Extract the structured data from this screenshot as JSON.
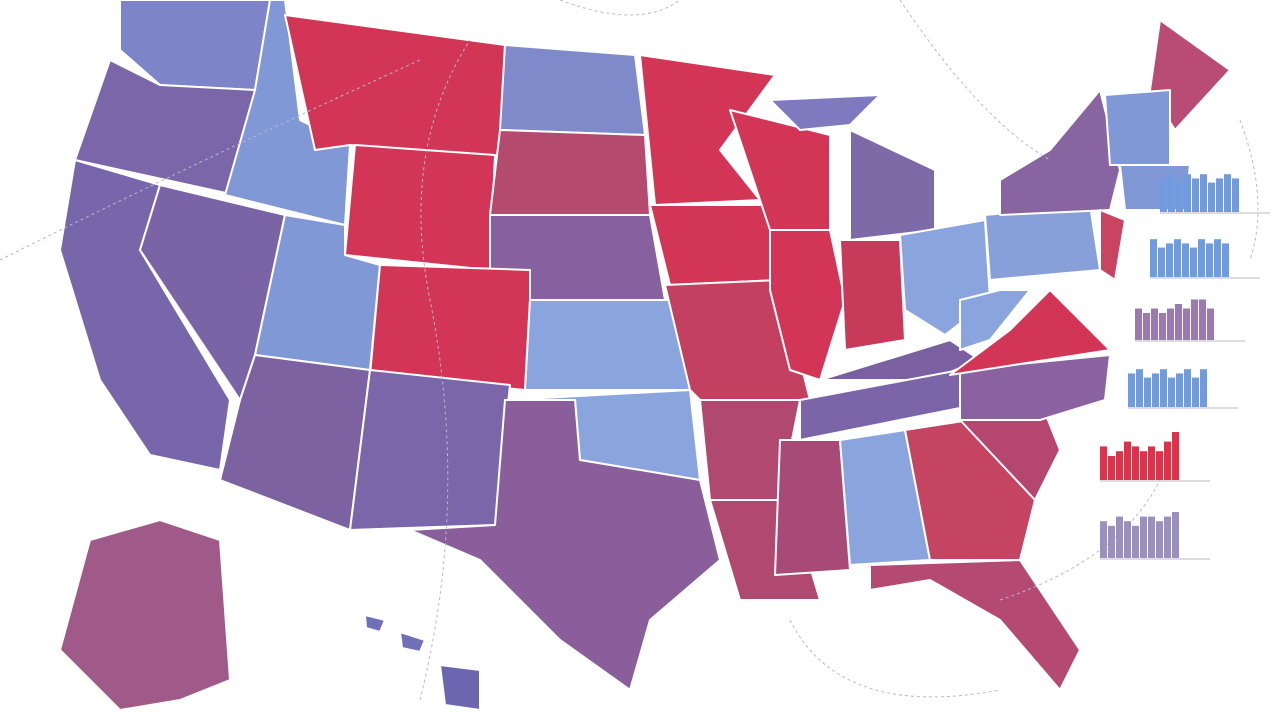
{
  "chart_data": [
    {
      "type": "bar",
      "color": "#6f9be0",
      "ylim": [
        0,
        10
      ],
      "values": [
        8,
        9,
        7,
        9,
        8,
        9,
        7,
        8,
        9,
        8
      ]
    },
    {
      "type": "bar",
      "color": "#6f9be0",
      "ylim": [
        0,
        10
      ],
      "values": [
        9,
        7,
        8,
        9,
        8,
        7,
        9,
        8,
        9,
        8
      ]
    },
    {
      "type": "bar",
      "color": "#9a7ab0",
      "ylim": [
        0,
        10
      ],
      "values": [
        7,
        6,
        7,
        6,
        7,
        8,
        7,
        9,
        9,
        7
      ]
    },
    {
      "type": "bar",
      "color": "#6f9be0",
      "ylim": [
        0,
        10
      ],
      "values": [
        8,
        9,
        7,
        8,
        9,
        7,
        8,
        9,
        7,
        9
      ]
    },
    {
      "type": "bar",
      "color": "#e0304a",
      "ylim": [
        0,
        10
      ],
      "values": [
        7,
        5,
        6,
        8,
        7,
        6,
        7,
        6,
        8,
        10
      ]
    },
    {
      "type": "bar",
      "color": "#9a90c0",
      "ylim": [
        0,
        10
      ],
      "values": [
        8,
        7,
        9,
        8,
        7,
        9,
        9,
        8,
        9,
        10
      ]
    }
  ]
}
